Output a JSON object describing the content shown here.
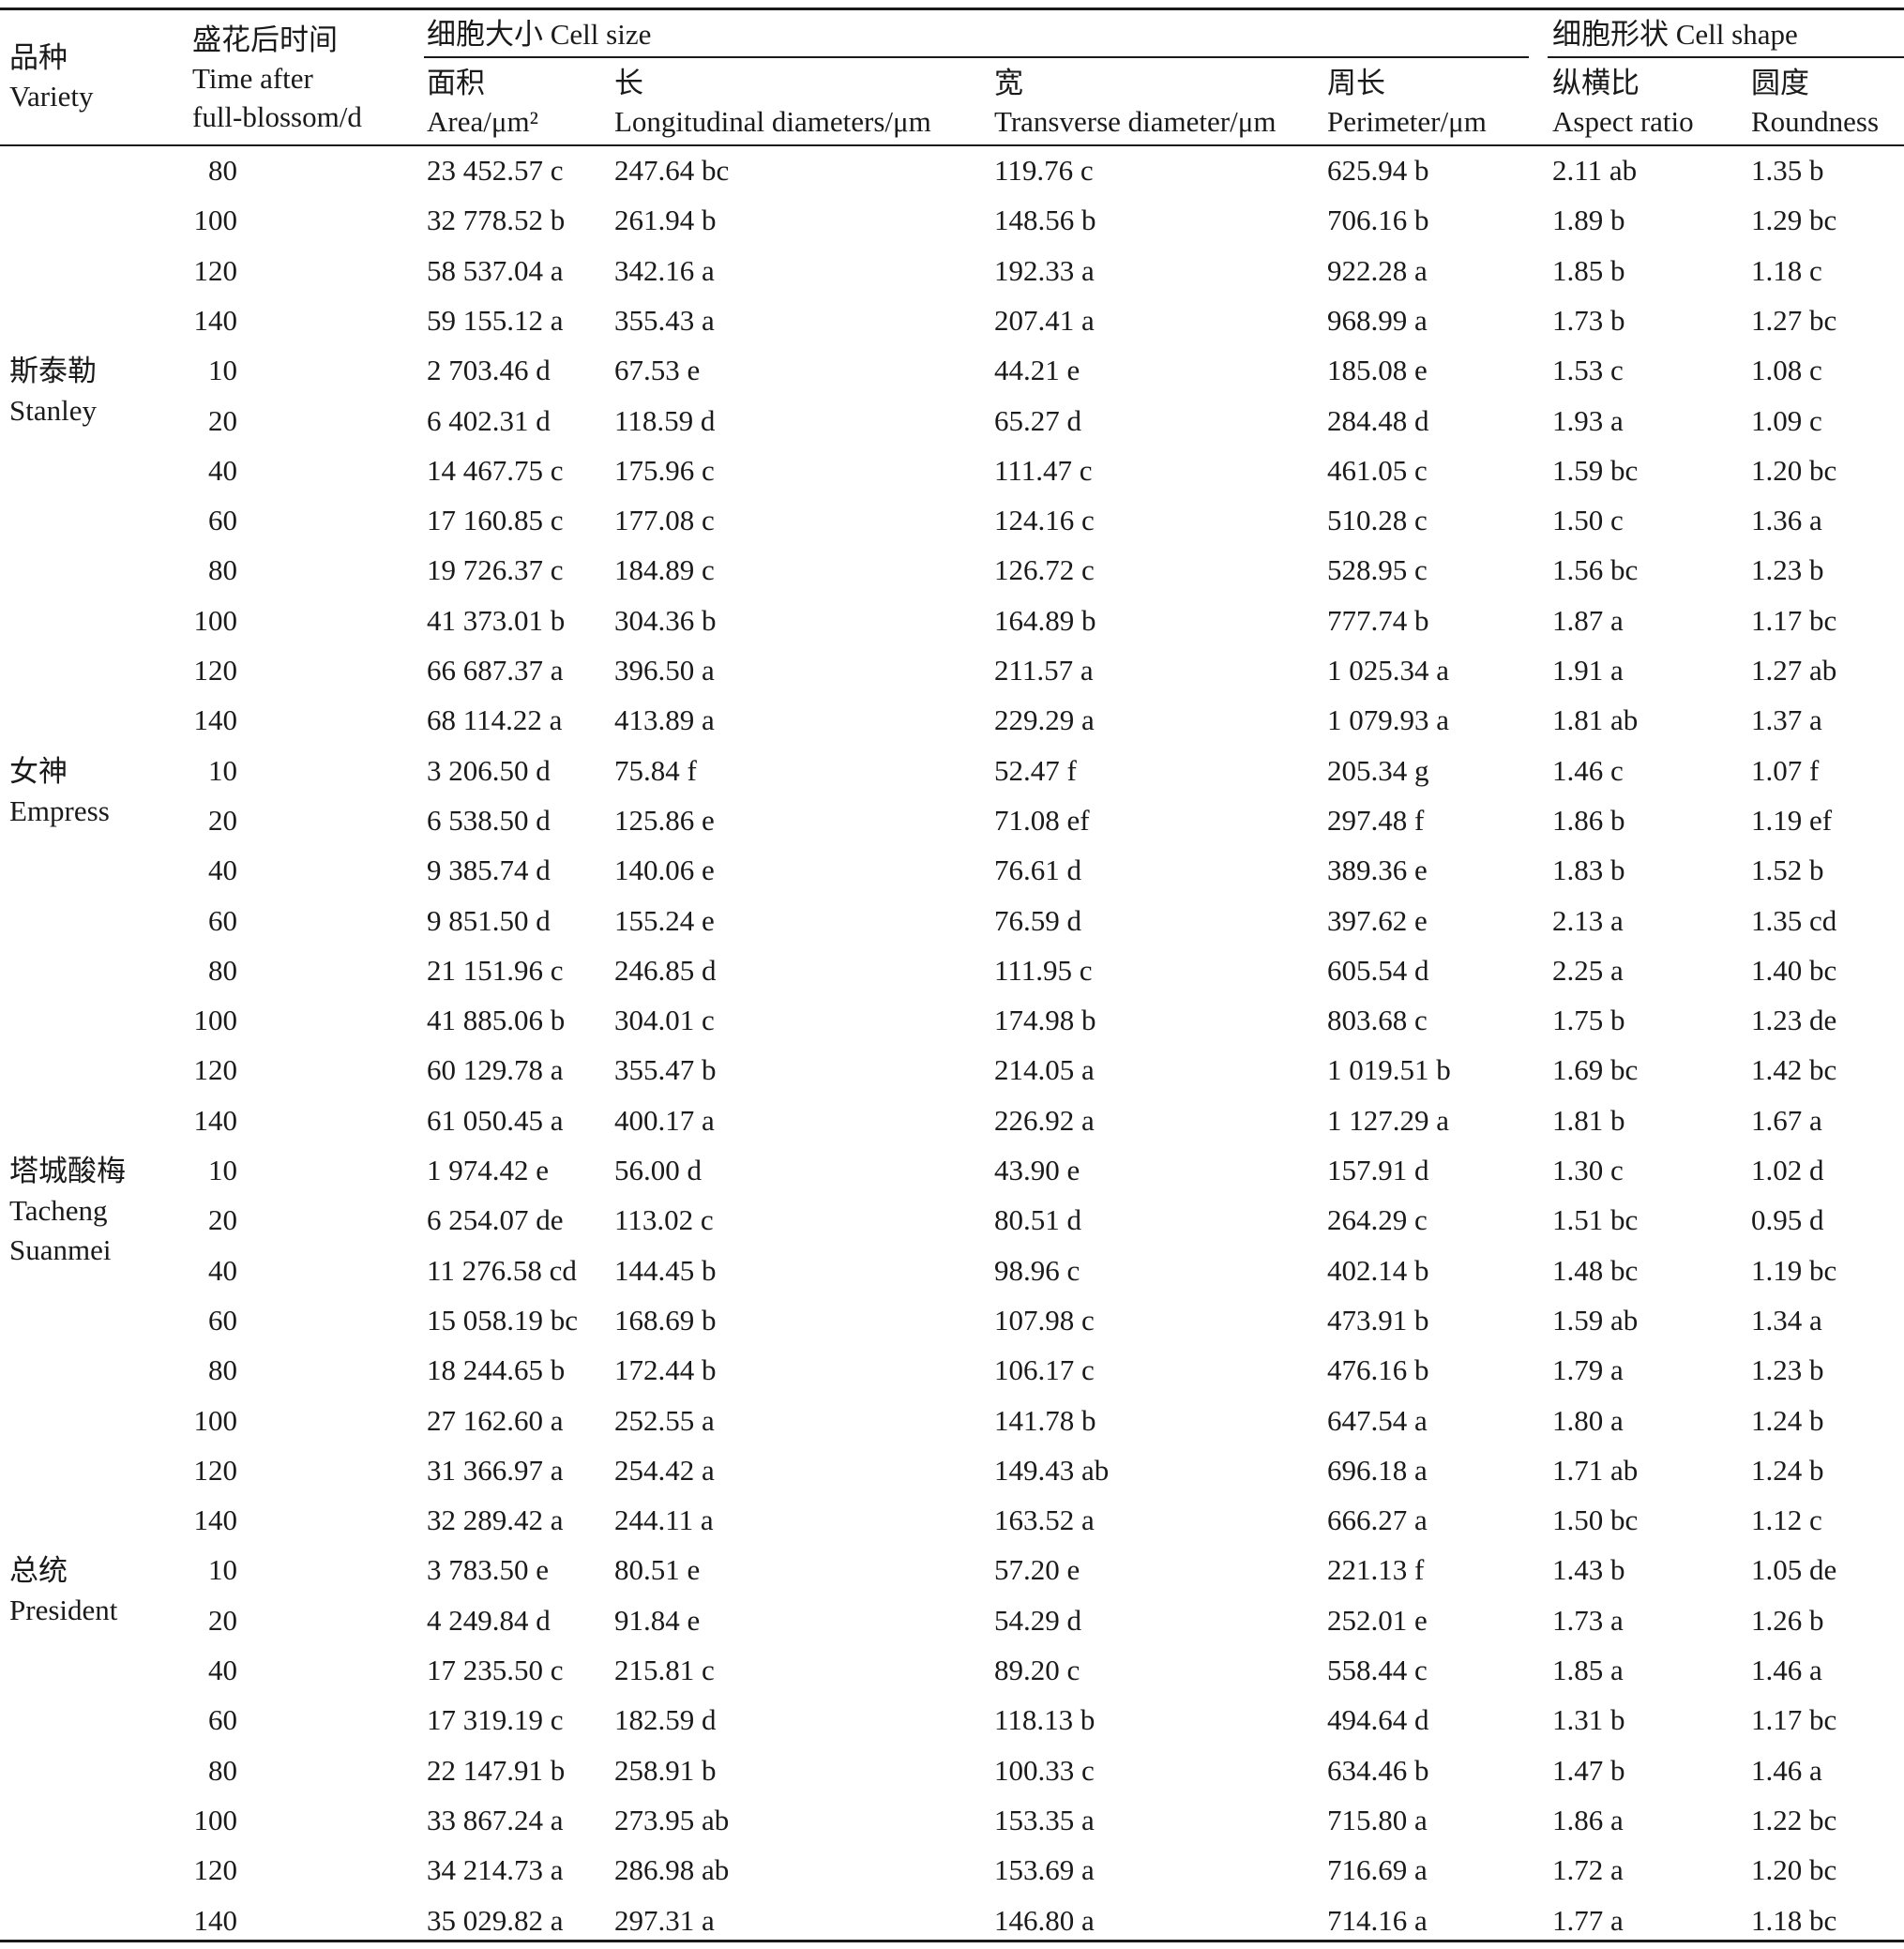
{
  "header": {
    "variety": [
      "品种",
      "Variety"
    ],
    "time": [
      "盛花后时间",
      "Time after",
      "full-blossom/d"
    ],
    "cell_size_group": "细胞大小 Cell size",
    "cell_shape_group": "细胞形状 Cell shape",
    "area": [
      "面积",
      "Area/μm²"
    ],
    "longitudinal": [
      "长",
      "Longitudinal diameters/μm"
    ],
    "transverse": [
      "宽",
      "Transverse diameter/μm"
    ],
    "perimeter": [
      "周长",
      "Perimeter/μm"
    ],
    "aspect": [
      "纵横比",
      "Aspect ratio"
    ],
    "roundness": [
      "圆度",
      "Roundness"
    ]
  },
  "variety_labels": [
    {
      "lines": [
        "斯泰勒",
        "Stanley"
      ],
      "row": 4
    },
    {
      "lines": [
        "女神",
        "Empress"
      ],
      "row": 12
    },
    {
      "lines": [
        "塔城酸梅",
        "Tacheng",
        "Suanmei"
      ],
      "row": 20
    },
    {
      "lines": [
        "总统",
        "President"
      ],
      "row": 28
    }
  ],
  "rows": [
    [
      "80",
      "23 452.57 c",
      "247.64 bc",
      "119.76 c",
      "625.94 b",
      "2.11 ab",
      "1.35 b"
    ],
    [
      "100",
      "32 778.52 b",
      "261.94 b",
      "148.56 b",
      "706.16 b",
      "1.89 b",
      "1.29 bc"
    ],
    [
      "120",
      "58 537.04 a",
      "342.16 a",
      "192.33 a",
      "922.28 a",
      "1.85 b",
      "1.18 c"
    ],
    [
      "140",
      "59 155.12 a",
      "355.43 a",
      "207.41 a",
      "968.99 a",
      "1.73 b",
      "1.27 bc"
    ],
    [
      "10",
      "2 703.46 d",
      "67.53 e",
      "44.21 e",
      "185.08 e",
      "1.53 c",
      "1.08 c"
    ],
    [
      "20",
      "6 402.31 d",
      "118.59 d",
      "65.27 d",
      "284.48 d",
      "1.93 a",
      "1.09 c"
    ],
    [
      "40",
      "14 467.75 c",
      "175.96 c",
      "111.47 c",
      "461.05 c",
      "1.59 bc",
      "1.20 bc"
    ],
    [
      "60",
      "17 160.85 c",
      "177.08 c",
      "124.16 c",
      "510.28 c",
      "1.50 c",
      "1.36 a"
    ],
    [
      "80",
      "19 726.37 c",
      "184.89 c",
      "126.72 c",
      "528.95 c",
      "1.56 bc",
      "1.23 b"
    ],
    [
      "100",
      "41 373.01 b",
      "304.36 b",
      "164.89 b",
      "777.74 b",
      "1.87 a",
      "1.17 bc"
    ],
    [
      "120",
      "66 687.37 a",
      "396.50 a",
      "211.57 a",
      "1 025.34 a",
      "1.91 a",
      "1.27 ab"
    ],
    [
      "140",
      "68 114.22 a",
      "413.89 a",
      "229.29 a",
      "1 079.93 a",
      "1.81 ab",
      "1.37 a"
    ],
    [
      "10",
      "3 206.50 d",
      "75.84 f",
      "52.47 f",
      "205.34 g",
      "1.46 c",
      "1.07 f"
    ],
    [
      "20",
      "6 538.50 d",
      "125.86 e",
      "71.08 ef",
      "297.48 f",
      "1.86 b",
      "1.19 ef"
    ],
    [
      "40",
      "9 385.74 d",
      "140.06 e",
      "76.61 d",
      "389.36 e",
      "1.83 b",
      "1.52 b"
    ],
    [
      "60",
      "9 851.50 d",
      "155.24 e",
      "76.59 d",
      "397.62 e",
      "2.13 a",
      "1.35 cd"
    ],
    [
      "80",
      "21 151.96 c",
      "246.85 d",
      "111.95 c",
      "605.54 d",
      "2.25 a",
      "1.40 bc"
    ],
    [
      "100",
      "41 885.06 b",
      "304.01 c",
      "174.98 b",
      "803.68 c",
      "1.75 b",
      "1.23 de"
    ],
    [
      "120",
      "60 129.78 a",
      "355.47 b",
      "214.05 a",
      "1 019.51 b",
      "1.69 bc",
      "1.42 bc"
    ],
    [
      "140",
      "61 050.45 a",
      "400.17 a",
      "226.92 a",
      "1 127.29 a",
      "1.81 b",
      "1.67 a"
    ],
    [
      "10",
      "1 974.42 e",
      "56.00 d",
      "43.90 e",
      "157.91 d",
      "1.30 c",
      "1.02 d"
    ],
    [
      "20",
      "6 254.07 de",
      "113.02 c",
      "80.51 d",
      "264.29 c",
      "1.51 bc",
      "0.95 d"
    ],
    [
      "40",
      "11 276.58 cd",
      "144.45 b",
      "98.96 c",
      "402.14 b",
      "1.48 bc",
      "1.19 bc"
    ],
    [
      "60",
      "15 058.19 bc",
      "168.69 b",
      "107.98 c",
      "473.91 b",
      "1.59 ab",
      "1.34 a"
    ],
    [
      "80",
      "18 244.65 b",
      "172.44 b",
      "106.17 c",
      "476.16 b",
      "1.79 a",
      "1.23 b"
    ],
    [
      "100",
      "27 162.60 a",
      "252.55 a",
      "141.78 b",
      "647.54 a",
      "1.80 a",
      "1.24 b"
    ],
    [
      "120",
      "31 366.97 a",
      "254.42 a",
      "149.43 ab",
      "696.18 a",
      "1.71 ab",
      "1.24 b"
    ],
    [
      "140",
      "32 289.42 a",
      "244.11 a",
      "163.52 a",
      "666.27 a",
      "1.50 bc",
      "1.12 c"
    ],
    [
      "10",
      "3 783.50 e",
      "80.51 e",
      "57.20 e",
      "221.13 f",
      "1.43 b",
      "1.05 de"
    ],
    [
      "20",
      "4 249.84 d",
      "91.84 e",
      "54.29 d",
      "252.01 e",
      "1.73 a",
      "1.26 b"
    ],
    [
      "40",
      "17 235.50 c",
      "215.81 c",
      "89.20 c",
      "558.44 c",
      "1.85 a",
      "1.46 a"
    ],
    [
      "60",
      "17 319.19 c",
      "182.59 d",
      "118.13 b",
      "494.64 d",
      "1.31 b",
      "1.17 bc"
    ],
    [
      "80",
      "22 147.91 b",
      "258.91 b",
      "100.33 c",
      "634.46 b",
      "1.47 b",
      "1.46 a"
    ],
    [
      "100",
      "33 867.24 a",
      "273.95 ab",
      "153.35 a",
      "715.80 a",
      "1.86 a",
      "1.22 bc"
    ],
    [
      "120",
      "34 214.73 a",
      "286.98 ab",
      "153.69 a",
      "716.69 a",
      "1.72 a",
      "1.20 bc"
    ],
    [
      "140",
      "35 029.82 a",
      "297.31 a",
      "146.80 a",
      "714.16 a",
      "1.77 a",
      "1.18 bc"
    ]
  ]
}
